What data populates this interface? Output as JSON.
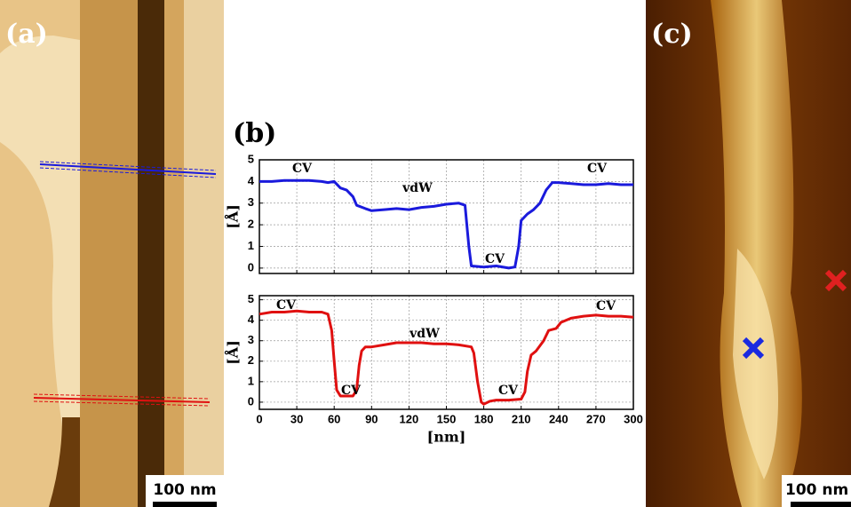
{
  "panels": {
    "a": {
      "label": "(a)",
      "scale_bar": "100 nm"
    },
    "b": {
      "label": "(b)"
    },
    "c": {
      "label": "(c)",
      "scale_bar": "100 nm"
    }
  },
  "chart_data": [
    {
      "type": "line",
      "y_label": "[Å]",
      "xlim": [
        0,
        300
      ],
      "xticks": [
        0,
        30,
        60,
        90,
        120,
        150,
        180,
        210,
        240,
        270,
        300
      ],
      "xtick_labels": false,
      "ylim": [
        -0.25,
        5
      ],
      "yticks": [
        0,
        1,
        2,
        3,
        4,
        5
      ],
      "grid": true,
      "x": [
        0,
        10,
        20,
        30,
        40,
        50,
        55,
        60,
        65,
        70,
        75,
        78,
        85,
        90,
        100,
        110,
        120,
        130,
        140,
        150,
        160,
        165,
        168,
        170,
        180,
        190,
        200,
        205,
        208,
        210,
        215,
        220,
        225,
        230,
        235,
        240,
        250,
        260,
        270,
        280,
        290,
        300
      ],
      "series": [
        {
          "color": "#1a1adc",
          "values": [
            4.0,
            4.0,
            4.05,
            4.05,
            4.05,
            4.0,
            3.95,
            4.0,
            3.7,
            3.6,
            3.3,
            2.9,
            2.75,
            2.65,
            2.7,
            2.75,
            2.7,
            2.8,
            2.85,
            2.95,
            3.0,
            2.9,
            1.0,
            0.1,
            0.05,
            0.1,
            0.0,
            0.05,
            1.0,
            2.2,
            2.5,
            2.7,
            3.0,
            3.6,
            3.95,
            3.95,
            3.9,
            3.85,
            3.85,
            3.9,
            3.85,
            3.85
          ]
        }
      ],
      "annotations": [
        "CV",
        "vdW",
        "CV",
        "CV"
      ]
    },
    {
      "type": "line",
      "x_label": "[nm]",
      "y_label": "[Å]",
      "xlim": [
        0,
        300
      ],
      "xticks": [
        0,
        30,
        60,
        90,
        120,
        150,
        180,
        210,
        240,
        270,
        300
      ],
      "ylim": [
        -0.35,
        5.2
      ],
      "yticks": [
        0,
        1,
        2,
        3,
        4,
        5
      ],
      "grid": true,
      "x": [
        0,
        10,
        20,
        30,
        40,
        50,
        55,
        58,
        60,
        62,
        65,
        70,
        75,
        78,
        80,
        82,
        85,
        90,
        100,
        110,
        120,
        130,
        140,
        150,
        160,
        170,
        172,
        175,
        178,
        180,
        185,
        190,
        200,
        210,
        213,
        215,
        218,
        222,
        228,
        232,
        238,
        242,
        250,
        260,
        270,
        280,
        290,
        300
      ],
      "series": [
        {
          "color": "#e01010",
          "values": [
            4.3,
            4.4,
            4.4,
            4.45,
            4.4,
            4.4,
            4.3,
            3.5,
            2.0,
            0.6,
            0.3,
            0.3,
            0.3,
            0.6,
            1.8,
            2.5,
            2.7,
            2.7,
            2.8,
            2.9,
            2.9,
            2.9,
            2.85,
            2.85,
            2.8,
            2.7,
            2.4,
            1.0,
            0.0,
            -0.1,
            0.05,
            0.1,
            0.1,
            0.15,
            0.5,
            1.5,
            2.3,
            2.5,
            3.0,
            3.5,
            3.6,
            3.9,
            4.1,
            4.2,
            4.25,
            4.2,
            4.2,
            4.15
          ]
        }
      ],
      "annotations": [
        "CV",
        "CV",
        "vdW",
        "CV",
        "CV"
      ]
    }
  ]
}
